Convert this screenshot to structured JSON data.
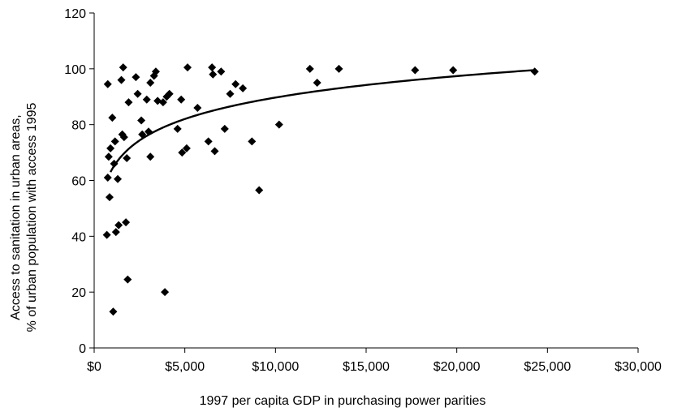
{
  "chart_data": {
    "type": "scatter",
    "title": "",
    "xlabel": "1997 per capita GDP in purchasing power parities",
    "ylabel_lines": [
      "Access to sanitation in urban areas,",
      "% of urban population with access 1995"
    ],
    "xlim": [
      0,
      30000
    ],
    "ylim": [
      0,
      120
    ],
    "x_ticks": [
      0,
      5000,
      10000,
      15000,
      20000,
      25000,
      30000
    ],
    "x_tick_labels": [
      "$0",
      "$5,000",
      "$10,000",
      "$15,000",
      "$20,000",
      "$25,000",
      "$30,000"
    ],
    "y_ticks": [
      0,
      20,
      40,
      60,
      80,
      100,
      120
    ],
    "y_tick_labels": [
      "0",
      "20",
      "40",
      "60",
      "80",
      "100",
      "120"
    ],
    "grid": false,
    "legend": "none",
    "marker": "diamond",
    "marker_color": "#000000",
    "trendline": {
      "type": "logarithmic",
      "x_start": 900,
      "x_end": 24200,
      "y_at_start": 63,
      "y_at_end": 99.5,
      "color": "#000000"
    },
    "points": [
      {
        "x": 700,
        "y": 40.5
      },
      {
        "x": 750,
        "y": 94.5
      },
      {
        "x": 750,
        "y": 61
      },
      {
        "x": 800,
        "y": 68.5
      },
      {
        "x": 850,
        "y": 54
      },
      {
        "x": 900,
        "y": 71.5
      },
      {
        "x": 1000,
        "y": 82.5
      },
      {
        "x": 1050,
        "y": 13
      },
      {
        "x": 1100,
        "y": 66
      },
      {
        "x": 1150,
        "y": 74
      },
      {
        "x": 1200,
        "y": 41.5
      },
      {
        "x": 1300,
        "y": 60.5
      },
      {
        "x": 1350,
        "y": 44
      },
      {
        "x": 1500,
        "y": 96
      },
      {
        "x": 1550,
        "y": 76.5
      },
      {
        "x": 1600,
        "y": 100.5
      },
      {
        "x": 1650,
        "y": 75.5
      },
      {
        "x": 1750,
        "y": 45
      },
      {
        "x": 1800,
        "y": 68
      },
      {
        "x": 1850,
        "y": 24.5
      },
      {
        "x": 1900,
        "y": 88
      },
      {
        "x": 2300,
        "y": 97
      },
      {
        "x": 2400,
        "y": 91
      },
      {
        "x": 2600,
        "y": 81.5
      },
      {
        "x": 2650,
        "y": 76.5
      },
      {
        "x": 2900,
        "y": 89
      },
      {
        "x": 3000,
        "y": 77.5
      },
      {
        "x": 3100,
        "y": 68.5
      },
      {
        "x": 3100,
        "y": 95
      },
      {
        "x": 3300,
        "y": 97.5
      },
      {
        "x": 3400,
        "y": 99
      },
      {
        "x": 3500,
        "y": 88.5
      },
      {
        "x": 3800,
        "y": 88
      },
      {
        "x": 3900,
        "y": 20
      },
      {
        "x": 4000,
        "y": 90
      },
      {
        "x": 4150,
        "y": 91
      },
      {
        "x": 4600,
        "y": 78.5
      },
      {
        "x": 4800,
        "y": 89
      },
      {
        "x": 4850,
        "y": 70
      },
      {
        "x": 5100,
        "y": 71.5
      },
      {
        "x": 5150,
        "y": 100.5
      },
      {
        "x": 5700,
        "y": 86
      },
      {
        "x": 6300,
        "y": 74
      },
      {
        "x": 6500,
        "y": 100.5
      },
      {
        "x": 6550,
        "y": 98
      },
      {
        "x": 6650,
        "y": 70.5
      },
      {
        "x": 7000,
        "y": 99
      },
      {
        "x": 7200,
        "y": 78.5
      },
      {
        "x": 7500,
        "y": 91
      },
      {
        "x": 7800,
        "y": 94.5
      },
      {
        "x": 8200,
        "y": 93
      },
      {
        "x": 8700,
        "y": 74
      },
      {
        "x": 9100,
        "y": 56.5
      },
      {
        "x": 10200,
        "y": 80
      },
      {
        "x": 11900,
        "y": 100
      },
      {
        "x": 12300,
        "y": 95
      },
      {
        "x": 13500,
        "y": 100
      },
      {
        "x": 17700,
        "y": 99.5
      },
      {
        "x": 19800,
        "y": 99.5
      },
      {
        "x": 24300,
        "y": 99
      }
    ]
  }
}
